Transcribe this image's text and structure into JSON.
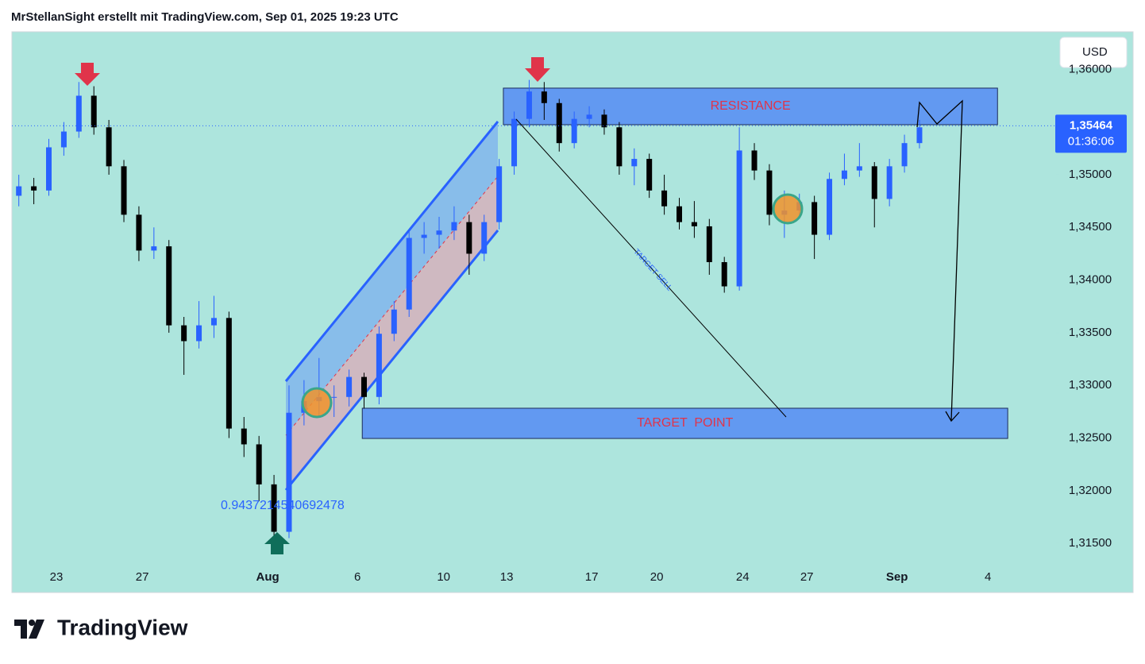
{
  "header": {
    "title": "MrStellanSight erstellt mit TradingView.com, Sep 01, 2025 19:23 UTC"
  },
  "chart_data": {
    "type": "candlestick",
    "currency": "USD",
    "x": [
      -1.25,
      -0.75,
      -0.25,
      0.25,
      0.75,
      1.25,
      1.75,
      2.25,
      2.75,
      3.25,
      3.75,
      4.25,
      4.75,
      5.25,
      5.75,
      6.25,
      6.75,
      7.25,
      7.75,
      8.25,
      8.75,
      9.25,
      9.75,
      10.25,
      10.75,
      11.25,
      11.75,
      12.25,
      12.75,
      13.25,
      13.75,
      14.25,
      14.75,
      15.25,
      15.75,
      16.25,
      16.75,
      17.25,
      17.75,
      18.25,
      18.75,
      19.25,
      19.75,
      20.25,
      20.75,
      21.25,
      21.75,
      22.25,
      22.75,
      23.25,
      23.75,
      24.25,
      24.75,
      25.25,
      25.75,
      26.25,
      26.75,
      27.25,
      27.75,
      28.25,
      28.75
    ],
    "open": [
      1.348,
      1.3489,
      1.3485,
      1.3526,
      1.3541,
      1.3575,
      1.3545,
      1.3508,
      1.3462,
      1.3428,
      1.3432,
      1.3357,
      1.3342,
      1.3357,
      1.3364,
      1.3259,
      1.3244,
      1.3206,
      1.3161,
      1.3274,
      1.3285,
      1.3289,
      1.3289,
      1.3308,
      1.3289,
      1.3349,
      1.3372,
      1.344,
      1.3443,
      1.3447,
      1.3455,
      1.3425,
      1.3455,
      1.3508,
      1.3553,
      1.3579,
      1.3568,
      1.353,
      1.3553,
      1.3557,
      1.3545,
      1.3508,
      1.3515,
      1.3485,
      1.347,
      1.3455,
      1.3451,
      1.3417,
      1.3394,
      1.3523,
      1.3504,
      1.3462,
      1.3466,
      1.3474,
      1.3443,
      1.3496,
      1.3504,
      1.3508,
      1.3477,
      1.3508,
      1.353
    ],
    "high": [
      1.35,
      1.3497,
      1.3534,
      1.355,
      1.3588,
      1.3584,
      1.3552,
      1.3514,
      1.347,
      1.345,
      1.3438,
      1.3365,
      1.338,
      1.3385,
      1.337,
      1.327,
      1.3252,
      1.3215,
      1.33,
      1.3305,
      1.3326,
      1.33,
      1.3315,
      1.3312,
      1.3356,
      1.338,
      1.3448,
      1.3455,
      1.346,
      1.347,
      1.3462,
      1.3462,
      1.3515,
      1.356,
      1.359,
      1.3588,
      1.3572,
      1.356,
      1.3565,
      1.3562,
      1.355,
      1.3525,
      1.352,
      1.35,
      1.3478,
      1.3475,
      1.3458,
      1.3422,
      1.3545,
      1.353,
      1.351,
      1.3485,
      1.3482,
      1.348,
      1.3502,
      1.352,
      1.353,
      1.3512,
      1.3515,
      1.3538,
      1.3552
    ],
    "low": [
      1.347,
      1.3472,
      1.348,
      1.3518,
      1.3535,
      1.3538,
      1.35,
      1.3455,
      1.3418,
      1.342,
      1.335,
      1.331,
      1.3335,
      1.3345,
      1.325,
      1.3232,
      1.319,
      1.315,
      1.3155,
      1.3262,
      1.327,
      1.327,
      1.328,
      1.3278,
      1.3282,
      1.3342,
      1.3365,
      1.3425,
      1.343,
      1.3438,
      1.3405,
      1.3418,
      1.3448,
      1.35,
      1.3545,
      1.3552,
      1.3522,
      1.3525,
      1.3545,
      1.3538,
      1.35,
      1.349,
      1.3478,
      1.3462,
      1.3448,
      1.344,
      1.3405,
      1.3388,
      1.339,
      1.3495,
      1.3452,
      1.344,
      1.3458,
      1.342,
      1.3438,
      1.349,
      1.3498,
      1.345,
      1.347,
      1.3502,
      1.3525
    ],
    "close": [
      1.3489,
      1.3485,
      1.3526,
      1.3541,
      1.3575,
      1.3545,
      1.3508,
      1.3462,
      1.3428,
      1.3432,
      1.3357,
      1.3342,
      1.3357,
      1.3364,
      1.3259,
      1.3244,
      1.3206,
      1.3161,
      1.3274,
      1.3285,
      1.3289,
      1.3289,
      1.3308,
      1.3289,
      1.3349,
      1.3372,
      1.344,
      1.3443,
      1.3447,
      1.3455,
      1.3425,
      1.3455,
      1.3508,
      1.3553,
      1.3579,
      1.3568,
      1.353,
      1.3553,
      1.3557,
      1.3545,
      1.3508,
      1.3515,
      1.3485,
      1.347,
      1.3455,
      1.3451,
      1.3417,
      1.3394,
      1.3523,
      1.3504,
      1.3462,
      1.3466,
      1.3474,
      1.3443,
      1.3496,
      1.3504,
      1.3508,
      1.3477,
      1.3508,
      1.353,
      1.3545
    ],
    "up_color": "#2962ff",
    "down_color": "#000000",
    "xlim": [
      -1.48,
      33.3
    ],
    "xticks": [
      {
        "value": 0,
        "label": "23"
      },
      {
        "value": 2.86,
        "label": "27"
      },
      {
        "value": 7.04,
        "label": "Aug"
      },
      {
        "value": 10.03,
        "label": "6"
      },
      {
        "value": 12.9,
        "label": "10"
      },
      {
        "value": 15,
        "label": "13"
      },
      {
        "value": 17.83,
        "label": "17"
      },
      {
        "value": 20,
        "label": "20"
      },
      {
        "value": 22.86,
        "label": "24"
      },
      {
        "value": 25,
        "label": "27"
      },
      {
        "value": 28,
        "label": "Sep"
      },
      {
        "value": 31.03,
        "label": "4"
      }
    ],
    "ylim": [
      1.31041,
      1.36357
    ],
    "yticks": [
      {
        "value": 1.315,
        "label": "1,31500"
      },
      {
        "value": 1.32,
        "label": "1,32000"
      },
      {
        "value": 1.325,
        "label": "1,32500"
      },
      {
        "value": 1.33,
        "label": "1,33000"
      },
      {
        "value": 1.335,
        "label": "1,33500"
      },
      {
        "value": 1.34,
        "label": "1,34000"
      },
      {
        "value": 1.345,
        "label": "1,34500"
      },
      {
        "value": 1.35,
        "label": "1,35000"
      },
      {
        "value": 1.36,
        "label": "1,36000"
      }
    ],
    "last_price": {
      "value": 1.35464,
      "label": "1,35464"
    },
    "countdown": "01:36:06",
    "zones": [
      {
        "label": "RESISTANCE",
        "x": [
          14.89,
          31.35
        ],
        "y": [
          1.35475,
          1.35822
        ]
      },
      {
        "label": "TARGET  POINT",
        "x": [
          10.19,
          31.69
        ],
        "y": [
          1.32496,
          1.32783
        ]
      }
    ],
    "annotations": {
      "target_sell": "TARGET SELL",
      "ratio": "0.9437214540692478"
    }
  },
  "footer": {
    "logo": "TradingView"
  }
}
